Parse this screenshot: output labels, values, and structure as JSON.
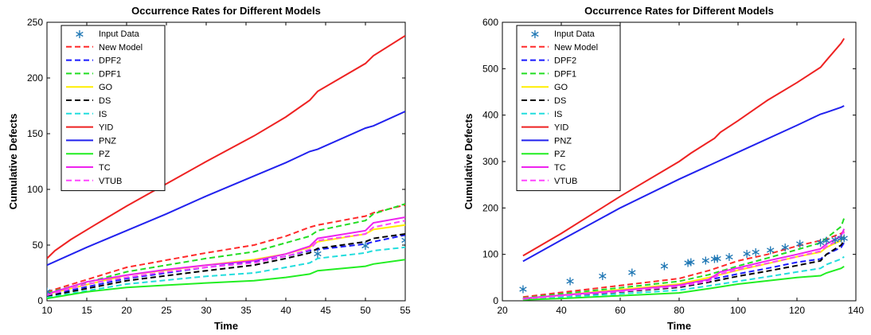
{
  "chart_data": [
    {
      "type": "line",
      "title": "Occurrence Rates for Different Models",
      "xlabel": "Time",
      "ylabel": "Cumulative Defects",
      "xlim": [
        10,
        55
      ],
      "ylim": [
        0,
        250
      ],
      "xticks": [
        "10",
        "15",
        "20",
        "25",
        "30",
        "35",
        "40",
        "45",
        "50",
        "55"
      ],
      "yticks": [
        "0",
        "50",
        "100",
        "150",
        "200",
        "250"
      ],
      "legend_position": "top-left",
      "series": [
        {
          "name": "Input Data",
          "style": "marker",
          "color": "#1f77b4",
          "x": [
            10,
            44,
            50,
            55
          ],
          "y": [
            9,
            43,
            50,
            55
          ]
        },
        {
          "name": "New Model",
          "style": "dashed",
          "color": "#ff2a2a",
          "x": [
            10,
            20,
            30,
            36,
            40,
            43,
            44,
            50,
            51,
            55
          ],
          "y": [
            8,
            30,
            43,
            50,
            58,
            66,
            68,
            76,
            79,
            86
          ]
        },
        {
          "name": "DPF2",
          "style": "dashed",
          "color": "#1a1aff",
          "x": [
            10,
            20,
            30,
            36,
            40,
            43,
            44,
            50,
            51,
            55
          ],
          "y": [
            5,
            20,
            30,
            35,
            40,
            45,
            46,
            51,
            53,
            59
          ]
        },
        {
          "name": "DPF1",
          "style": "dashed",
          "color": "#22dd22",
          "x": [
            10,
            20,
            30,
            36,
            40,
            43,
            44,
            50,
            51,
            55
          ],
          "y": [
            7,
            26,
            38,
            44,
            52,
            58,
            63,
            72,
            78,
            87
          ]
        },
        {
          "name": "GO",
          "style": "solid",
          "color": "#ffee00",
          "x": [
            10,
            20,
            30,
            36,
            40,
            43,
            44,
            50,
            51,
            55
          ],
          "y": [
            6,
            23,
            32,
            37,
            42,
            48,
            53,
            60,
            64,
            68
          ]
        },
        {
          "name": "DS",
          "style": "dashed",
          "color": "#000000",
          "x": [
            10,
            20,
            30,
            36,
            40,
            43,
            44,
            50,
            51,
            55
          ],
          "y": [
            4,
            18,
            27,
            32,
            38,
            43,
            47,
            53,
            56,
            60
          ]
        },
        {
          "name": "IS",
          "style": "dashed",
          "color": "#22dddd",
          "x": [
            10,
            20,
            30,
            36,
            40,
            43,
            44,
            50,
            51,
            55
          ],
          "y": [
            3,
            15,
            22,
            25,
            30,
            34,
            38,
            43,
            45,
            48
          ]
        },
        {
          "name": "YID",
          "style": "solid",
          "color": "#ee2222",
          "x": [
            10,
            11,
            13,
            16,
            20,
            25,
            30,
            36,
            40,
            43,
            44,
            50,
            51,
            55
          ],
          "y": [
            38,
            45,
            55,
            68,
            85,
            105,
            125,
            148,
            165,
            180,
            188,
            213,
            220,
            238
          ]
        },
        {
          "name": "PNZ",
          "style": "solid",
          "color": "#2222ee",
          "x": [
            10,
            15,
            20,
            25,
            30,
            36,
            40,
            43,
            44,
            50,
            51,
            55
          ],
          "y": [
            32,
            48,
            63,
            78,
            94,
            112,
            124,
            134,
            136,
            155,
            157,
            170
          ]
        },
        {
          "name": "PZ",
          "style": "solid",
          "color": "#22ee22",
          "x": [
            10,
            15,
            20,
            25,
            30,
            36,
            40,
            43,
            44,
            50,
            51,
            55
          ],
          "y": [
            2,
            8,
            12,
            14,
            16,
            18,
            21,
            24,
            27,
            31,
            33,
            37
          ]
        },
        {
          "name": "TC",
          "style": "solid",
          "color": "#ee22ee",
          "x": [
            10,
            15,
            20,
            25,
            30,
            36,
            40,
            43,
            44,
            50,
            51,
            55
          ],
          "y": [
            6,
            17,
            23,
            28,
            32,
            36,
            42,
            49,
            56,
            63,
            70,
            75
          ]
        },
        {
          "name": "VTUB",
          "style": "dashed",
          "color": "#ff44ff",
          "x": [
            10,
            15,
            20,
            25,
            30,
            36,
            40,
            43,
            44,
            50,
            51,
            55
          ],
          "y": [
            5,
            15,
            21,
            26,
            30,
            34,
            40,
            46,
            54,
            60,
            66,
            72
          ]
        }
      ]
    },
    {
      "type": "line",
      "title": "Occurrence Rates for Different Models",
      "xlabel": "Time",
      "ylabel": "Cumulative Defects",
      "xlim": [
        20,
        140
      ],
      "ylim": [
        0,
        600
      ],
      "xticks": [
        "20",
        "40",
        "60",
        "80",
        "100",
        "120",
        "140"
      ],
      "yticks": [
        "0",
        "100",
        "200",
        "300",
        "400",
        "500",
        "600"
      ],
      "legend_position": "top-left",
      "series": [
        {
          "name": "Input Data",
          "style": "marker",
          "color": "#1f77b4",
          "x": [
            27,
            43,
            54,
            64,
            75,
            83,
            84,
            89,
            92,
            93,
            97,
            103,
            106,
            111,
            116,
            121,
            128,
            130,
            133,
            135,
            136
          ],
          "y": [
            27,
            44,
            55,
            63,
            76,
            83,
            85,
            88,
            92,
            93,
            96,
            103,
            106,
            111,
            117,
            124,
            127,
            131,
            133,
            136,
            136
          ]
        },
        {
          "name": "New Model",
          "style": "dashed",
          "color": "#ff2a2a",
          "x": [
            27,
            40,
            60,
            80,
            90,
            100,
            110,
            120,
            128,
            130,
            135,
            136
          ],
          "y": [
            8,
            18,
            33,
            48,
            65,
            86,
            100,
            118,
            130,
            133,
            145,
            150
          ]
        },
        {
          "name": "DPF2",
          "style": "dashed",
          "color": "#1a1aff",
          "x": [
            27,
            40,
            60,
            80,
            90,
            100,
            110,
            120,
            128,
            130,
            135,
            136
          ],
          "y": [
            5,
            12,
            22,
            32,
            45,
            58,
            70,
            83,
            90,
            100,
            115,
            125
          ]
        },
        {
          "name": "DPF1",
          "style": "dashed",
          "color": "#22dd22",
          "x": [
            27,
            40,
            60,
            80,
            90,
            100,
            110,
            120,
            128,
            130,
            135,
            136
          ],
          "y": [
            6,
            15,
            28,
            42,
            56,
            75,
            92,
            110,
            125,
            135,
            160,
            178
          ]
        },
        {
          "name": "GO",
          "style": "solid",
          "color": "#ffee00",
          "x": [
            27,
            40,
            60,
            80,
            90,
            100,
            110,
            120,
            128,
            130,
            135,
            136
          ],
          "y": [
            5,
            12,
            24,
            36,
            50,
            66,
            80,
            95,
            105,
            115,
            130,
            140
          ]
        },
        {
          "name": "DS",
          "style": "dashed",
          "color": "#000000",
          "x": [
            27,
            40,
            60,
            80,
            90,
            100,
            110,
            120,
            128,
            130,
            135,
            136
          ],
          "y": [
            4,
            10,
            19,
            29,
            40,
            53,
            64,
            76,
            86,
            100,
            120,
            130
          ]
        },
        {
          "name": "IS",
          "style": "dashed",
          "color": "#22dddd",
          "x": [
            27,
            40,
            60,
            80,
            90,
            100,
            110,
            120,
            128,
            130,
            135,
            136
          ],
          "y": [
            3,
            8,
            15,
            23,
            32,
            42,
            52,
            62,
            70,
            78,
            90,
            95
          ]
        },
        {
          "name": "YID",
          "style": "solid",
          "color": "#ee2222",
          "x": [
            27,
            40,
            60,
            80,
            84,
            92,
            94,
            100,
            105,
            110,
            120,
            128,
            130,
            135,
            136
          ],
          "y": [
            97,
            145,
            225,
            300,
            318,
            350,
            363,
            388,
            410,
            432,
            470,
            503,
            518,
            555,
            565
          ]
        },
        {
          "name": "PNZ",
          "style": "solid",
          "color": "#2222ee",
          "x": [
            27,
            40,
            60,
            80,
            100,
            120,
            128,
            130,
            135,
            136
          ],
          "y": [
            85,
            131,
            200,
            262,
            320,
            378,
            402,
            406,
            417,
            420
          ]
        },
        {
          "name": "PZ",
          "style": "solid",
          "color": "#22ee22",
          "x": [
            27,
            40,
            60,
            80,
            90,
            100,
            110,
            120,
            128,
            130,
            135,
            136
          ],
          "y": [
            2,
            5,
            11,
            17,
            26,
            36,
            43,
            50,
            54,
            60,
            70,
            74
          ]
        },
        {
          "name": "TC",
          "style": "solid",
          "color": "#ee22ee",
          "x": [
            27,
            40,
            60,
            80,
            90,
            94,
            100,
            110,
            120,
            128,
            130,
            135,
            136
          ],
          "y": [
            5,
            12,
            22,
            34,
            46,
            62,
            71,
            86,
            100,
            112,
            122,
            140,
            155
          ]
        },
        {
          "name": "VTUB",
          "style": "dashed",
          "color": "#ff44ff",
          "x": [
            27,
            40,
            60,
            80,
            90,
            94,
            100,
            110,
            120,
            128,
            130,
            135,
            136
          ],
          "y": [
            4,
            11,
            20,
            31,
            42,
            58,
            67,
            81,
            95,
            107,
            117,
            134,
            148
          ]
        }
      ]
    }
  ]
}
